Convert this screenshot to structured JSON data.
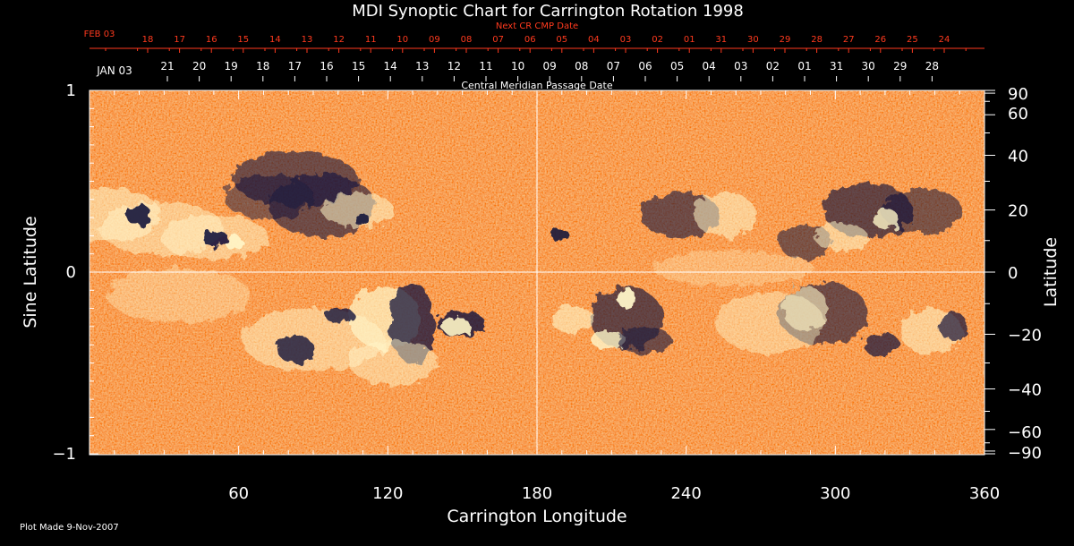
{
  "chart_data": {
    "type": "heatmap",
    "title": "MDI Synoptic Chart for Carrington Rotation 1998",
    "xlabel": "Carrington Longitude",
    "ylabel_left": "Sine Latitude",
    "ylabel_right": "Latitude",
    "xlim": [
      0,
      360
    ],
    "ylim": [
      -1,
      1
    ],
    "x_ticks": [
      "60",
      "120",
      "180",
      "240",
      "300",
      "360"
    ],
    "y_ticks_left": [
      "1",
      "0",
      "−1"
    ],
    "y_ticks_right": [
      "90",
      "60",
      "40",
      "20",
      "0",
      "−20",
      "−40",
      "−60",
      "−90"
    ],
    "top_axis_label": "Central Meridian Passage Date",
    "top_axis_first_label": "JAN 03",
    "top_axis_dates": [
      "21",
      "20",
      "19",
      "18",
      "17",
      "16",
      "15",
      "14",
      "13",
      "12",
      "11",
      "10",
      "09",
      "08",
      "07",
      "06",
      "05",
      "04",
      "03",
      "02",
      "01",
      "31",
      "30",
      "29",
      "28"
    ],
    "next_cr_label": "Next CR CMP Date",
    "next_cr_first_label": "FEB 03",
    "next_cr_dates": [
      "18",
      "17",
      "16",
      "15",
      "14",
      "13",
      "12",
      "11",
      "10",
      "09",
      "08",
      "07",
      "06",
      "05",
      "04",
      "03",
      "02",
      "01",
      "31",
      "30",
      "29",
      "28",
      "27",
      "26",
      "25",
      "24"
    ],
    "colors": {
      "background_field": "#e8460e",
      "positive_polarity": "#fff6c8",
      "negative_polarity": "#14143c",
      "next_cr_text": "#ff3a1e"
    }
  },
  "footer": {
    "plot_made": "Plot Made  9-Nov-2007"
  }
}
